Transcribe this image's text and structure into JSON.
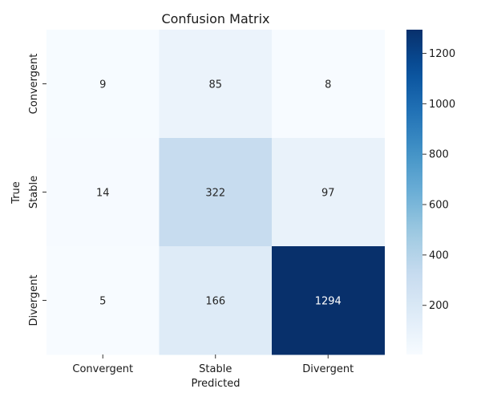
{
  "chart_data": {
    "type": "heatmap",
    "title": "Confusion Matrix",
    "xlabel": "Predicted",
    "ylabel": "True",
    "x_categories": [
      "Convergent",
      "Stable",
      "Divergent"
    ],
    "y_categories": [
      "Convergent",
      "Stable",
      "Divergent"
    ],
    "values": [
      [
        9,
        85,
        8
      ],
      [
        14,
        322,
        97
      ],
      [
        5,
        166,
        1294
      ]
    ],
    "colormap": "Blues",
    "colorbar": {
      "vmin": 5,
      "vmax": 1294,
      "ticks": [
        200,
        400,
        600,
        800,
        1000,
        1200
      ]
    }
  }
}
